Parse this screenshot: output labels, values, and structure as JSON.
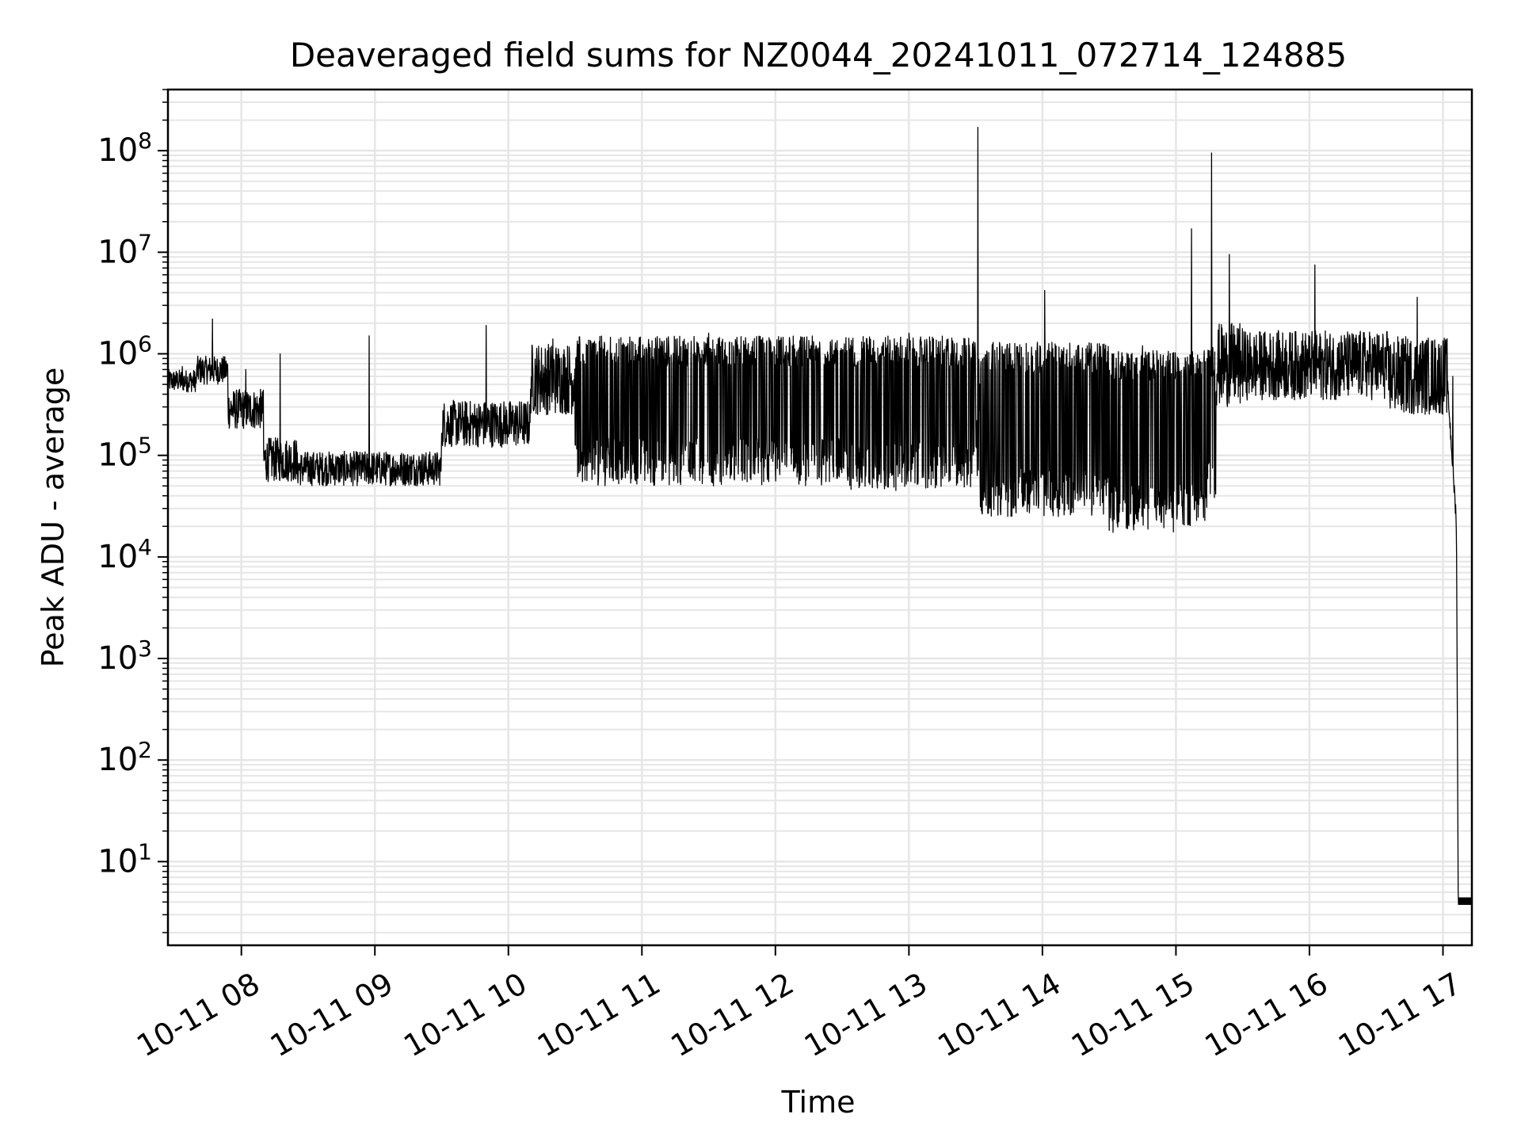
{
  "chart_data": {
    "type": "line",
    "title": "Deaveraged field sums for NZ0044_20241011_072714_124885",
    "xlabel": "Time",
    "ylabel": "Peak ADU - average",
    "yscale": "log",
    "ylim": [
      1.5,
      400000000
    ],
    "xlim": [
      "2024-10-11 07:27",
      "2024-10-11 17:13"
    ],
    "grid": true,
    "line_color": "#000000",
    "x_ticks": [
      {
        "x": "2024-10-11 08:00",
        "label": "10-11 08"
      },
      {
        "x": "2024-10-11 09:00",
        "label": "10-11 09"
      },
      {
        "x": "2024-10-11 10:00",
        "label": "10-11 10"
      },
      {
        "x": "2024-10-11 11:00",
        "label": "10-11 11"
      },
      {
        "x": "2024-10-11 12:00",
        "label": "10-11 12"
      },
      {
        "x": "2024-10-11 13:00",
        "label": "10-11 13"
      },
      {
        "x": "2024-10-11 14:00",
        "label": "10-11 14"
      },
      {
        "x": "2024-10-11 15:00",
        "label": "10-11 15"
      },
      {
        "x": "2024-10-11 16:00",
        "label": "10-11 16"
      },
      {
        "x": "2024-10-11 17:00",
        "label": "10-11 17"
      }
    ],
    "y_ticks": [
      {
        "value": 10,
        "mantissa": "10",
        "exponent": "1"
      },
      {
        "value": 100,
        "mantissa": "10",
        "exponent": "2"
      },
      {
        "value": 1000,
        "mantissa": "10",
        "exponent": "3"
      },
      {
        "value": 10000,
        "mantissa": "10",
        "exponent": "4"
      },
      {
        "value": 100000,
        "mantissa": "10",
        "exponent": "5"
      },
      {
        "value": 1000000,
        "mantissa": "10",
        "exponent": "6"
      },
      {
        "value": 10000000,
        "mantissa": "10",
        "exponent": "7"
      },
      {
        "value": 100000000,
        "mantissa": "10",
        "exponent": "8"
      }
    ],
    "segments": [
      {
        "start": "2024-10-11 07:27",
        "end": "2024-10-11 07:40",
        "low": 420000,
        "high": 700000,
        "spike": 750000,
        "style": "dense"
      },
      {
        "start": "2024-10-11 07:40",
        "end": "2024-10-11 07:54",
        "low": 500000,
        "high": 950000,
        "spike": 2200000,
        "style": "dense"
      },
      {
        "start": "2024-10-11 07:54",
        "end": "2024-10-11 08:10",
        "low": 180000,
        "high": 450000,
        "spike": 700000,
        "style": "dense"
      },
      {
        "start": "2024-10-11 08:10",
        "end": "2024-10-11 08:25",
        "low": 55000,
        "high": 150000,
        "spike": 1000000,
        "style": "dense"
      },
      {
        "start": "2024-10-11 08:25",
        "end": "2024-10-11 09:30",
        "low": 50000,
        "high": 110000,
        "spike": 1500000,
        "style": "dense"
      },
      {
        "start": "2024-10-11 09:30",
        "end": "2024-10-11 10:10",
        "low": 120000,
        "high": 350000,
        "spike": 1900000,
        "style": "dense"
      },
      {
        "start": "2024-10-11 10:10",
        "end": "2024-10-11 10:30",
        "low": 250000,
        "high": 1300000,
        "spike": 1400000,
        "style": "dense"
      },
      {
        "start": "2024-10-11 10:30",
        "end": "2024-10-11 12:30",
        "low": 50000,
        "high": 1500000,
        "spike": 1600000,
        "style": "swing"
      },
      {
        "start": "2024-10-11 12:30",
        "end": "2024-10-11 13:30",
        "low": 45000,
        "high": 1500000,
        "spike": 1600000,
        "style": "swing"
      },
      {
        "start": "2024-10-11 13:30",
        "end": "2024-10-11 13:32",
        "low": 60000,
        "high": 1300000,
        "spike": 170000000,
        "style": "dense"
      },
      {
        "start": "2024-10-11 13:32",
        "end": "2024-10-11 14:30",
        "low": 25000,
        "high": 1300000,
        "spike": 4200000,
        "style": "swing"
      },
      {
        "start": "2024-10-11 14:30",
        "end": "2024-10-11 15:00",
        "low": 17000,
        "high": 1100000,
        "spike": 1200000,
        "style": "swing"
      },
      {
        "start": "2024-10-11 15:00",
        "end": "2024-10-11 15:14",
        "low": 20000,
        "high": 1100000,
        "spike": 17000000,
        "style": "swing"
      },
      {
        "start": "2024-10-11 15:14",
        "end": "2024-10-11 15:18",
        "low": 35000,
        "high": 1200000,
        "spike": 95000000,
        "style": "swing"
      },
      {
        "start": "2024-10-11 15:18",
        "end": "2024-10-11 15:30",
        "low": 300000,
        "high": 2000000,
        "spike": 9500000,
        "style": "dense"
      },
      {
        "start": "2024-10-11 15:30",
        "end": "2024-10-11 16:35",
        "low": 350000,
        "high": 1700000,
        "spike": 7500000,
        "style": "dense"
      },
      {
        "start": "2024-10-11 16:35",
        "end": "2024-10-11 17:02",
        "low": 250000,
        "high": 1500000,
        "spike": 3600000,
        "style": "dense"
      },
      {
        "start": "2024-10-11 17:02",
        "end": "2024-10-11 17:07",
        "low": 12000,
        "high": 500000,
        "spike": 600000,
        "style": "drop"
      },
      {
        "start": "2024-10-11 17:07",
        "end": "2024-10-11 17:13",
        "low": 3.8,
        "high": 4.4,
        "spike": 4.4,
        "style": "flat"
      }
    ]
  }
}
